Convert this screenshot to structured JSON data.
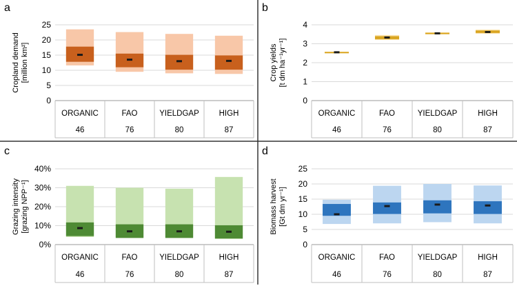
{
  "panels": [
    {
      "letter": "a",
      "ylabel_line1": "Cropland demand",
      "ylabel_line2": "[million km²]",
      "yticks": [
        "0",
        "5",
        "10",
        "15",
        "20",
        "25"
      ],
      "ymin": 0,
      "ymax": 25,
      "tick_step": 5,
      "colors": {
        "outer": "#F8C7A8",
        "inner": "#C8601D",
        "mean": "#1a1a1a"
      }
    },
    {
      "letter": "b",
      "ylabel_line1": "Crop yields",
      "ylabel_line2": "[t dm ha⁻¹yr⁻¹]",
      "yticks": [
        "0",
        "1",
        "2",
        "3",
        "4"
      ],
      "ymin": 0,
      "ymax": 4,
      "tick_step": 1,
      "colors": {
        "outer": "#FBE3AE",
        "inner": "#D9A521",
        "mean": "#1a1a1a"
      }
    },
    {
      "letter": "c",
      "ylabel_line1": "Grazing intensity",
      "ylabel_line2": "[grazing NPP⁻¹]",
      "yticks": [
        "0%",
        "10%",
        "20%",
        "30%",
        "40%"
      ],
      "ymin": 0,
      "ymax": 40,
      "tick_step": 10,
      "colors": {
        "outer": "#C7E2B0",
        "inner": "#4E8A34",
        "mean": "#1a1a1a"
      }
    },
    {
      "letter": "d",
      "ylabel_line1": "Biomass harvest",
      "ylabel_line2": "[Gt dm yr⁻¹]",
      "yticks": [
        "0",
        "5",
        "10",
        "15",
        "20",
        "25"
      ],
      "ymin": 0,
      "ymax": 25,
      "tick_step": 5,
      "colors": {
        "outer": "#BCD6F0",
        "inner": "#2E75BE",
        "mean": "#1a1a1a"
      }
    }
  ],
  "scenarios": [
    "ORGANIC",
    "FAO",
    "YIELDGAP",
    "HIGH"
  ],
  "scenario_counts": [
    "46",
    "76",
    "80",
    "87"
  ],
  "chart_data": [
    {
      "type": "bar",
      "panel": "a",
      "ylabel": "Cropland demand [million km²]",
      "ylim": [
        0,
        25
      ],
      "categories": [
        "ORGANIC",
        "FAO",
        "YIELDGAP",
        "HIGH"
      ],
      "counts": [
        46,
        76,
        80,
        87
      ],
      "outer_range": [
        [
          11.6,
          23.5
        ],
        [
          9.5,
          22.6
        ],
        [
          9.0,
          22.0
        ],
        [
          8.8,
          21.4
        ]
      ],
      "inner_range": [
        [
          12.8,
          17.8
        ],
        [
          11.0,
          15.5
        ],
        [
          10.2,
          15.1
        ],
        [
          10.2,
          14.9
        ]
      ],
      "mean": [
        15.1,
        13.5,
        13.0,
        13.1
      ],
      "grid": true
    },
    {
      "type": "bar",
      "panel": "b",
      "ylabel": "Crop yields [t dm ha⁻¹yr⁻¹]",
      "ylim": [
        0,
        4
      ],
      "categories": [
        "ORGANIC",
        "FAO",
        "YIELDGAP",
        "HIGH"
      ],
      "counts": [
        46,
        76,
        80,
        87
      ],
      "outer_range": [
        [
          2.52,
          2.58
        ],
        [
          3.2,
          3.46
        ],
        [
          3.5,
          3.6
        ],
        [
          3.53,
          3.75
        ]
      ],
      "inner_range": [
        [
          2.54,
          2.57
        ],
        [
          3.24,
          3.4
        ],
        [
          3.52,
          3.58
        ],
        [
          3.57,
          3.7
        ]
      ],
      "mean": [
        2.55,
        3.33,
        3.55,
        3.62
      ],
      "grid": true
    },
    {
      "type": "bar",
      "panel": "c",
      "ylabel": "Grazing intensity [grazing NPP⁻¹]",
      "ylim": [
        0,
        40
      ],
      "categories": [
        "ORGANIC",
        "FAO",
        "YIELDGAP",
        "HIGH"
      ],
      "counts": [
        46,
        76,
        80,
        87
      ],
      "outer_range": [
        [
          4,
          31
        ],
        [
          4,
          30
        ],
        [
          4,
          29.5
        ],
        [
          3,
          35.7
        ]
      ],
      "inner_range": [
        [
          4.5,
          11.7
        ],
        [
          3.5,
          10.7
        ],
        [
          3.5,
          10.7
        ],
        [
          3.2,
          10.2
        ]
      ],
      "mean": [
        8.7,
        7.0,
        7.0,
        6.8
      ],
      "grid": true
    },
    {
      "type": "bar",
      "panel": "d",
      "ylabel": "Biomass harvest [Gt dm yr⁻¹]",
      "ylim": [
        0,
        25
      ],
      "categories": [
        "ORGANIC",
        "FAO",
        "YIELDGAP",
        "HIGH"
      ],
      "counts": [
        46,
        76,
        80,
        87
      ],
      "outer_range": [
        [
          6.8,
          14.8
        ],
        [
          7.0,
          19.4
        ],
        [
          7.4,
          20.0
        ],
        [
          7.0,
          19.5
        ]
      ],
      "inner_range": [
        [
          9.5,
          13.4
        ],
        [
          10.1,
          13.9
        ],
        [
          10.3,
          14.6
        ],
        [
          10.1,
          14.3
        ]
      ],
      "mean": [
        10.0,
        12.7,
        13.2,
        12.9
      ],
      "grid": true
    }
  ]
}
